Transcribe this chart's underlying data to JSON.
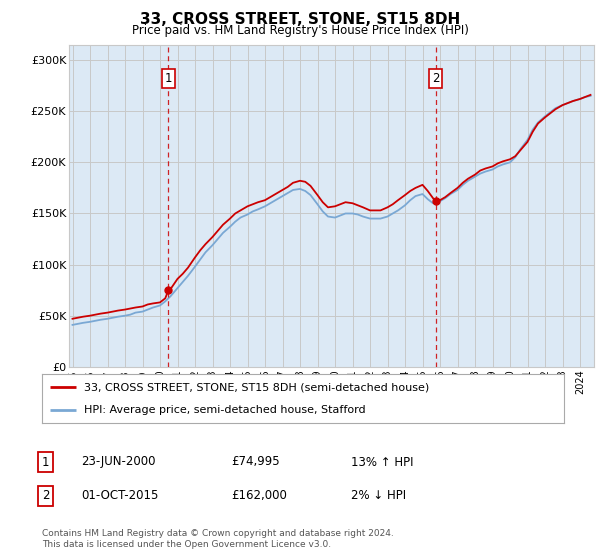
{
  "title": "33, CROSS STREET, STONE, ST15 8DH",
  "subtitle": "Price paid vs. HM Land Registry's House Price Index (HPI)",
  "background_color": "#ffffff",
  "plot_bg_color": "#dce9f5",
  "red_line_label": "33, CROSS STREET, STONE, ST15 8DH (semi-detached house)",
  "blue_line_label": "HPI: Average price, semi-detached house, Stafford",
  "annotation1_date": "23-JUN-2000",
  "annotation1_price": "£74,995",
  "annotation1_hpi": "13% ↑ HPI",
  "annotation2_date": "01-OCT-2015",
  "annotation2_price": "£162,000",
  "annotation2_hpi": "2% ↓ HPI",
  "footer": "Contains HM Land Registry data © Crown copyright and database right 2024.\nThis data is licensed under the Open Government Licence v3.0.",
  "ylim": [
    0,
    315000
  ],
  "yticks": [
    0,
    50000,
    100000,
    150000,
    200000,
    250000,
    300000
  ],
  "ytick_labels": [
    "£0",
    "£50K",
    "£100K",
    "£150K",
    "£200K",
    "£250K",
    "£300K"
  ],
  "red_color": "#cc0000",
  "blue_color": "#7aa8d4",
  "vline_color": "#cc0000",
  "grid_color": "#c8c8c8",
  "sale1_x": 2000.48,
  "sale1_y": 74995,
  "sale2_x": 2015.75,
  "sale2_y": 162000,
  "xmin": 1994.8,
  "xmax": 2024.8,
  "red_x": [
    1995.0,
    1995.3,
    1995.6,
    1996.0,
    1996.3,
    1996.6,
    1997.0,
    1997.3,
    1997.6,
    1998.0,
    1998.3,
    1998.6,
    1999.0,
    1999.3,
    1999.6,
    2000.0,
    2000.3,
    2000.48,
    2000.6,
    2001.0,
    2001.3,
    2001.6,
    2002.0,
    2002.3,
    2002.6,
    2003.0,
    2003.3,
    2003.6,
    2004.0,
    2004.3,
    2004.6,
    2005.0,
    2005.3,
    2005.6,
    2006.0,
    2006.3,
    2006.6,
    2007.0,
    2007.3,
    2007.6,
    2008.0,
    2008.3,
    2008.6,
    2009.0,
    2009.3,
    2009.6,
    2010.0,
    2010.3,
    2010.6,
    2011.0,
    2011.3,
    2011.6,
    2012.0,
    2012.3,
    2012.6,
    2013.0,
    2013.3,
    2013.6,
    2014.0,
    2014.3,
    2014.6,
    2015.0,
    2015.3,
    2015.6,
    2015.75,
    2016.0,
    2016.3,
    2016.6,
    2017.0,
    2017.3,
    2017.6,
    2018.0,
    2018.3,
    2018.6,
    2019.0,
    2019.3,
    2019.6,
    2020.0,
    2020.3,
    2020.6,
    2021.0,
    2021.3,
    2021.6,
    2022.0,
    2022.3,
    2022.6,
    2023.0,
    2023.3,
    2023.6,
    2024.0,
    2024.3,
    2024.6
  ],
  "red_y": [
    47000,
    48000,
    49000,
    50000,
    51000,
    52000,
    53000,
    54000,
    55000,
    56000,
    57000,
    58000,
    59000,
    61000,
    62000,
    63000,
    67000,
    74995,
    76000,
    86000,
    91000,
    97000,
    107000,
    114000,
    120000,
    127000,
    133000,
    139000,
    145000,
    150000,
    153000,
    157000,
    159000,
    161000,
    163000,
    166000,
    169000,
    173000,
    176000,
    180000,
    182000,
    181000,
    177000,
    168000,
    161000,
    156000,
    157000,
    159000,
    161000,
    160000,
    158000,
    156000,
    153000,
    153000,
    153000,
    156000,
    159000,
    163000,
    168000,
    172000,
    175000,
    178000,
    172000,
    165000,
    162000,
    163000,
    166000,
    170000,
    175000,
    180000,
    184000,
    188000,
    192000,
    194000,
    196000,
    199000,
    201000,
    203000,
    206000,
    212000,
    220000,
    230000,
    238000,
    244000,
    248000,
    252000,
    256000,
    258000,
    260000,
    262000,
    264000,
    266000
  ],
  "blue_x": [
    1995.0,
    1995.3,
    1995.6,
    1996.0,
    1996.3,
    1996.6,
    1997.0,
    1997.3,
    1997.6,
    1998.0,
    1998.3,
    1998.6,
    1999.0,
    1999.3,
    1999.6,
    2000.0,
    2000.3,
    2000.6,
    2001.0,
    2001.3,
    2001.6,
    2002.0,
    2002.3,
    2002.6,
    2003.0,
    2003.3,
    2003.6,
    2004.0,
    2004.3,
    2004.6,
    2005.0,
    2005.3,
    2005.6,
    2006.0,
    2006.3,
    2006.6,
    2007.0,
    2007.3,
    2007.6,
    2008.0,
    2008.3,
    2008.6,
    2009.0,
    2009.3,
    2009.6,
    2010.0,
    2010.3,
    2010.6,
    2011.0,
    2011.3,
    2011.6,
    2012.0,
    2012.3,
    2012.6,
    2013.0,
    2013.3,
    2013.6,
    2014.0,
    2014.3,
    2014.6,
    2015.0,
    2015.3,
    2015.6,
    2016.0,
    2016.3,
    2016.6,
    2017.0,
    2017.3,
    2017.6,
    2018.0,
    2018.3,
    2018.6,
    2019.0,
    2019.3,
    2019.6,
    2020.0,
    2020.3,
    2020.6,
    2021.0,
    2021.3,
    2021.6,
    2022.0,
    2022.3,
    2022.6,
    2023.0,
    2023.3,
    2023.6,
    2024.0,
    2024.3,
    2024.6
  ],
  "blue_y": [
    41000,
    42000,
    43000,
    44000,
    45000,
    46000,
    47000,
    48000,
    49000,
    50000,
    51000,
    53000,
    54000,
    56000,
    58000,
    60000,
    64000,
    69000,
    77000,
    83000,
    89000,
    98000,
    105000,
    112000,
    119000,
    125000,
    131000,
    137000,
    142000,
    146000,
    149000,
    152000,
    154000,
    157000,
    160000,
    163000,
    167000,
    170000,
    173000,
    174000,
    172000,
    168000,
    159000,
    152000,
    147000,
    146000,
    148000,
    150000,
    150000,
    149000,
    147000,
    145000,
    145000,
    145000,
    147000,
    150000,
    153000,
    158000,
    163000,
    167000,
    169000,
    164000,
    160000,
    162000,
    165000,
    169000,
    173000,
    178000,
    182000,
    186000,
    189000,
    191000,
    193000,
    196000,
    198000,
    200000,
    205000,
    213000,
    222000,
    232000,
    239000,
    245000,
    249000,
    253000,
    256000,
    258000,
    260000,
    262000,
    264000,
    265000
  ]
}
